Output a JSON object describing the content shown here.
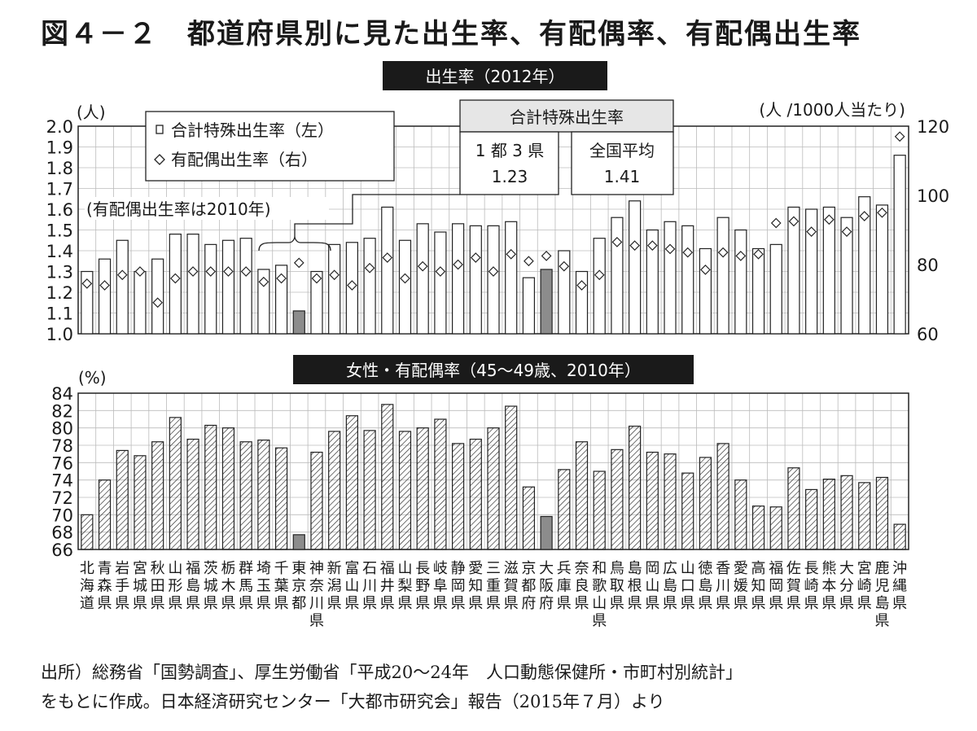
{
  "title": "図４－２　都道府県別に見た出生率、有配偶率、有配偶出生率",
  "chart_data": [
    {
      "type": "bar",
      "title": "出生率（2012年）",
      "ylabel_left": "(人)",
      "ylabel_right": "(人 /1000人当たり)",
      "ylim_left": [
        1.0,
        2.0
      ],
      "ylim_right": [
        60,
        120
      ],
      "yticks_left": [
        "2.0",
        "1.9",
        "1.8",
        "1.7",
        "1.6",
        "1.5",
        "1.4",
        "1.3",
        "1.2",
        "1.1",
        "1.0"
      ],
      "yticks_right": [
        "120",
        "100",
        "80",
        "60"
      ],
      "legend": [
        "合計特殊出生率（左）",
        "有配偶出生率（右）"
      ],
      "legend_placement": "top-left",
      "note": "(有配偶出生率は2010年)",
      "callout_title": "合計特殊出生率",
      "callout": [
        {
          "label": "1 都 3 県",
          "value": "1.23"
        },
        {
          "label": "全国平均",
          "value": "1.41"
        }
      ],
      "highlight": [
        "東京都",
        "大阪府"
      ],
      "series": [
        {
          "name": "合計特殊出生率（左）",
          "axis": "left",
          "values": [
            1.3,
            1.36,
            1.45,
            1.3,
            1.36,
            1.48,
            1.48,
            1.43,
            1.45,
            1.46,
            1.31,
            1.33,
            1.11,
            1.3,
            1.43,
            1.44,
            1.46,
            1.61,
            1.45,
            1.53,
            1.49,
            1.53,
            1.52,
            1.52,
            1.54,
            1.27,
            1.31,
            1.4,
            1.3,
            1.46,
            1.56,
            1.64,
            1.5,
            1.54,
            1.52,
            1.41,
            1.56,
            1.5,
            1.41,
            1.43,
            1.61,
            1.6,
            1.61,
            1.56,
            1.66,
            1.62,
            1.86
          ]
        },
        {
          "name": "有配偶出生率（右）",
          "axis": "right",
          "values": [
            74.5,
            74.0,
            77.0,
            78.0,
            69.0,
            76.0,
            78.0,
            78.0,
            78.0,
            78.0,
            75.0,
            76.0,
            80.5,
            76.0,
            77.0,
            74.0,
            79.0,
            82.0,
            76.0,
            79.5,
            78.0,
            80.0,
            82.0,
            78.0,
            83.0,
            81.0,
            82.5,
            79.5,
            74.0,
            77.0,
            86.5,
            85.5,
            85.5,
            84.5,
            83.5,
            78.5,
            83.5,
            82.5,
            83.0,
            92.0,
            92.5,
            89.5,
            93.0,
            89.5,
            94.0,
            95.0,
            117.0
          ]
        }
      ]
    },
    {
      "type": "bar",
      "title": "女性・有配偶率（45～49歳、2010年）",
      "ylabel": "(%)",
      "ylim": [
        66,
        84
      ],
      "yticks": [
        "84",
        "82",
        "80",
        "78",
        "76",
        "74",
        "72",
        "70",
        "68",
        "66"
      ],
      "highlight": [
        "東京都",
        "大阪府"
      ],
      "series": [
        {
          "name": "女性・有配偶率",
          "values": [
            70.0,
            74.0,
            77.4,
            76.8,
            78.4,
            81.2,
            78.7,
            80.3,
            80.0,
            78.4,
            78.6,
            77.7,
            67.7,
            77.2,
            79.6,
            81.4,
            79.7,
            82.7,
            79.6,
            80.0,
            81.0,
            78.2,
            78.7,
            80.0,
            82.5,
            73.2,
            69.8,
            75.2,
            78.4,
            75.0,
            77.5,
            80.2,
            77.2,
            77.0,
            74.8,
            76.6,
            78.2,
            74.0,
            71.0,
            70.9,
            75.4,
            72.9,
            74.1,
            74.5,
            73.7,
            74.3,
            68.9
          ]
        }
      ]
    }
  ],
  "categories": [
    "北海道",
    "青森県",
    "岩手県",
    "宮城県",
    "秋田県",
    "山形県",
    "福島県",
    "茨城県",
    "栃木県",
    "群馬県",
    "埼玉県",
    "千葉県",
    "東京都",
    "神奈川県",
    "新潟県",
    "富山県",
    "石川県",
    "福井県",
    "山梨県",
    "長野県",
    "岐阜県",
    "静岡県",
    "愛知県",
    "三重県",
    "滋賀県",
    "京都府",
    "大阪府",
    "兵庫県",
    "奈良県",
    "和歌山県",
    "鳥取県",
    "島根県",
    "岡山県",
    "広島県",
    "山口県",
    "徳島県",
    "香川県",
    "愛媛県",
    "高知県",
    "福岡県",
    "佐賀県",
    "長崎県",
    "熊本県",
    "大分県",
    "宮崎県",
    "鹿児島県",
    "沖縄県"
  ],
  "source": [
    "出所）総務省「国勢調査」、厚生労働省「平成20～24年　人口動態保健所・市町村別統計」",
    "をもとに作成。日本経済研究センター「大都市研究会」報告（2015年７月）より"
  ]
}
